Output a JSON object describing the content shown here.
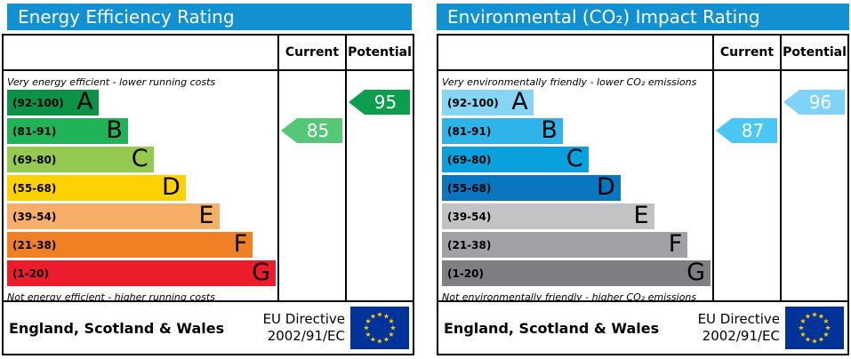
{
  "columns": {
    "current": "Current",
    "potential": "Potential"
  },
  "footer": {
    "region": "England, Scotland & Wales",
    "directive_line1": "EU Directive",
    "directive_line2": "2002/91/EC"
  },
  "eu_flag": {
    "background": "#003399",
    "star_color": "#ffcc00",
    "star_glyph": "★"
  },
  "panels": [
    {
      "title": "Energy Efficiency Rating",
      "title_bg": "#1191d1",
      "top_caption": "Very energy efficient - lower running costs",
      "bottom_caption": "Not energy efficient - higher running costs",
      "bands": [
        {
          "range": "(92-100)",
          "letter": "A",
          "color": "#0c9246",
          "width_pct": 34
        },
        {
          "range": "(81-91)",
          "letter": "B",
          "color": "#21b357",
          "width_pct": 45
        },
        {
          "range": "(69-80)",
          "letter": "C",
          "color": "#94ca4f",
          "width_pct": 54.5
        },
        {
          "range": "(55-68)",
          "letter": "D",
          "color": "#fed202",
          "width_pct": 66.5
        },
        {
          "range": "(39-54)",
          "letter": "E",
          "color": "#f7af68",
          "width_pct": 79
        },
        {
          "range": "(21-38)",
          "letter": "F",
          "color": "#ef8023",
          "width_pct": 91.5
        },
        {
          "range": "(1-20)",
          "letter": "G",
          "color": "#eb1c2c",
          "width_pct": 100
        }
      ],
      "current": {
        "value": "85",
        "band_index": 1,
        "color": "#55c877"
      },
      "potential": {
        "value": "95",
        "band_index": 0,
        "color": "#0b9e4c"
      }
    },
    {
      "title": "Environmental (CO₂) Impact Rating",
      "title_bg": "#1191d1",
      "top_caption": "Very environmentally friendly - lower CO₂ emissions",
      "bottom_caption": "Not environmentally friendly - higher CO₂ emissions",
      "bands": [
        {
          "range": "(92-100)",
          "letter": "A",
          "color": "#86d5f4",
          "width_pct": 34
        },
        {
          "range": "(81-91)",
          "letter": "B",
          "color": "#2eb4e9",
          "width_pct": 45
        },
        {
          "range": "(69-80)",
          "letter": "C",
          "color": "#0aa0dd",
          "width_pct": 54.5
        },
        {
          "range": "(55-68)",
          "letter": "D",
          "color": "#0b76c0",
          "width_pct": 66.5
        },
        {
          "range": "(39-54)",
          "letter": "E",
          "color": "#c2c3c5",
          "width_pct": 79
        },
        {
          "range": "(21-38)",
          "letter": "F",
          "color": "#9fa1a4",
          "width_pct": 91.5
        },
        {
          "range": "(1-20)",
          "letter": "G",
          "color": "#7e7e83",
          "width_pct": 100
        }
      ],
      "current": {
        "value": "87",
        "band_index": 1,
        "color": "#4ac7f4"
      },
      "potential": {
        "value": "96",
        "band_index": 0,
        "color": "#7fd3f6"
      }
    }
  ],
  "chart_data": [
    {
      "type": "bar",
      "title": "Energy Efficiency Rating",
      "categories": [
        "A (92-100)",
        "B (81-91)",
        "C (69-80)",
        "D (55-68)",
        "E (39-54)",
        "F (21-38)",
        "G (1-20)"
      ],
      "band_colors": [
        "#0c9246",
        "#21b357",
        "#94ca4f",
        "#fed202",
        "#f7af68",
        "#ef8023",
        "#eb1c2c"
      ],
      "series": [
        {
          "name": "Current",
          "value": 85,
          "band": "B",
          "color": "#55c877"
        },
        {
          "name": "Potential",
          "value": 95,
          "band": "A",
          "color": "#0b9e4c"
        }
      ],
      "value_range": [
        1,
        100
      ],
      "annotations": [
        "Very energy efficient - lower running costs",
        "Not energy efficient - higher running costs"
      ],
      "footer": "England, Scotland & Wales — EU Directive 2002/91/EC"
    },
    {
      "type": "bar",
      "title": "Environmental (CO₂) Impact Rating",
      "categories": [
        "A (92-100)",
        "B (81-91)",
        "C (69-80)",
        "D (55-68)",
        "E (39-54)",
        "F (21-38)",
        "G (1-20)"
      ],
      "band_colors": [
        "#86d5f4",
        "#2eb4e9",
        "#0aa0dd",
        "#0b76c0",
        "#c2c3c5",
        "#9fa1a4",
        "#7e7e83"
      ],
      "series": [
        {
          "name": "Current",
          "value": 87,
          "band": "B",
          "color": "#4ac7f4"
        },
        {
          "name": "Potential",
          "value": 96,
          "band": "A",
          "color": "#7fd3f6"
        }
      ],
      "value_range": [
        1,
        100
      ],
      "annotations": [
        "Very environmentally friendly - lower CO₂ emissions",
        "Not environmentally friendly - higher CO₂ emissions"
      ],
      "footer": "England, Scotland & Wales — EU Directive 2002/91/EC"
    }
  ]
}
